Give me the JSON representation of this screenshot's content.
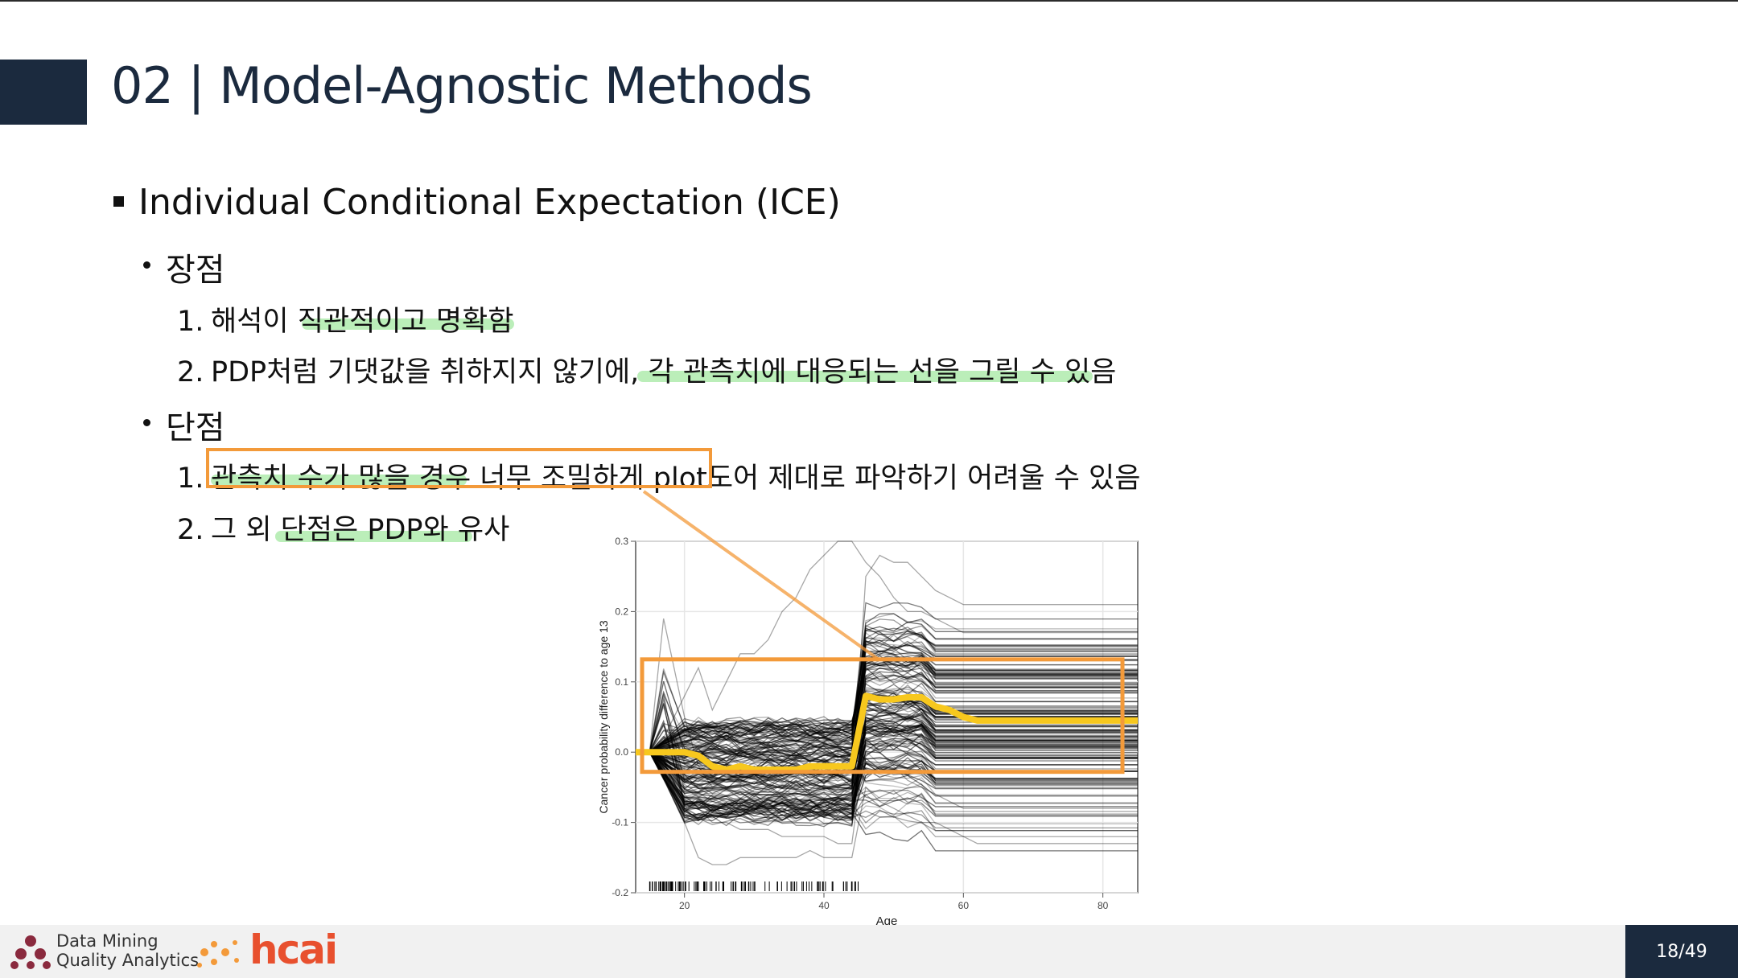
{
  "slide": {
    "title": "02 | Model-Agnostic Methods",
    "heading": "Individual Conditional Expectation (ICE)",
    "pros_label": "장점",
    "pros": [
      {
        "num": "1.",
        "text": "해석이 직관적이고 명확함"
      },
      {
        "num": "2.",
        "text": "PDP처럼 기댓값을 취하지지 않기에, 각 관측치에 대응되는 선을 그릴 수 있음"
      }
    ],
    "cons_label": "단점",
    "cons": [
      {
        "num": "1.",
        "text": "관측치 수가 많을 경우 너무 조밀하게 plot도어 제대로 파악하기 어려울 수 있음"
      },
      {
        "num": "2.",
        "text": "그 외 단점은 PDP와 유사"
      }
    ]
  },
  "chart_data": {
    "type": "line",
    "xlabel": "Age",
    "ylabel": "Cancer probability difference to age 13",
    "xlim": [
      13,
      85
    ],
    "ylim": [
      -0.2,
      0.3
    ],
    "x_ticks": [
      20,
      40,
      60,
      80
    ],
    "y_ticks": [
      -0.2,
      -0.1,
      0.0,
      0.1,
      0.2,
      0.3
    ],
    "x_tick_labels": [
      "20",
      "40",
      "60",
      "80"
    ],
    "y_tick_labels": [
      "-0.2",
      "-0.1",
      "0.0",
      "0.1",
      "0.2",
      "0.3"
    ],
    "grid": true,
    "highlight_color": "#f39a3a",
    "pdp_color": "#f7c81e",
    "x": [
      13,
      15,
      17,
      20,
      22,
      24,
      26,
      28,
      30,
      32,
      34,
      36,
      38,
      40,
      42,
      44,
      46,
      48,
      50,
      52,
      54,
      56,
      58,
      60,
      62,
      64,
      66,
      70,
      75,
      80,
      85
    ],
    "pdp": [
      0.0,
      0.0,
      0.0,
      0.0,
      -0.005,
      -0.02,
      -0.025,
      -0.02,
      -0.025,
      -0.025,
      -0.025,
      -0.025,
      -0.02,
      -0.02,
      -0.02,
      -0.02,
      0.08,
      0.075,
      0.075,
      0.078,
      0.078,
      0.065,
      0.06,
      0.05,
      0.045,
      0.045,
      0.045,
      0.045,
      0.045,
      0.045,
      0.045
    ],
    "sample_ice_curves": [
      [
        0.0,
        0.0,
        0.19,
        0.05,
        -0.02,
        -0.05,
        -0.05,
        -0.06,
        -0.06,
        -0.06,
        -0.06,
        -0.06,
        -0.06,
        -0.06,
        -0.06,
        -0.06,
        0.25,
        0.28,
        0.27,
        0.27,
        0.25,
        0.23,
        0.22,
        0.21,
        0.21,
        0.21,
        0.21,
        0.21,
        0.21,
        0.21,
        0.21
      ],
      [
        0.0,
        0.0,
        0.02,
        0.08,
        0.12,
        0.06,
        0.1,
        0.14,
        0.14,
        0.16,
        0.2,
        0.22,
        0.26,
        0.28,
        0.3,
        0.3,
        0.27,
        0.25,
        0.22,
        0.2,
        0.2,
        0.19,
        0.18,
        0.17,
        0.17,
        0.17,
        0.17,
        0.17,
        0.17,
        0.17,
        0.17
      ],
      [
        0.0,
        0.0,
        -0.01,
        -0.1,
        -0.15,
        -0.16,
        -0.16,
        -0.15,
        -0.15,
        -0.15,
        -0.15,
        -0.15,
        -0.14,
        -0.15,
        -0.15,
        -0.15,
        -0.05,
        -0.07,
        -0.08,
        -0.09,
        -0.1,
        -0.1,
        -0.11,
        -0.12,
        -0.13,
        -0.13,
        -0.13,
        -0.13,
        -0.13,
        -0.13,
        -0.13
      ],
      [
        0.0,
        0.0,
        0.0,
        -0.06,
        -0.08,
        -0.1,
        -0.1,
        -0.11,
        -0.11,
        -0.11,
        -0.12,
        -0.12,
        -0.12,
        -0.12,
        -0.13,
        -0.13,
        0.02,
        0.0,
        -0.02,
        -0.04,
        -0.05,
        -0.06,
        -0.07,
        -0.08,
        -0.08,
        -0.08,
        -0.08,
        -0.08,
        -0.08,
        -0.08,
        -0.08
      ]
    ]
  },
  "footer": {
    "logo_line1": "Data Mining",
    "logo_line2": "Quality Analytics",
    "logo2": "hcai",
    "page": "18/49"
  }
}
